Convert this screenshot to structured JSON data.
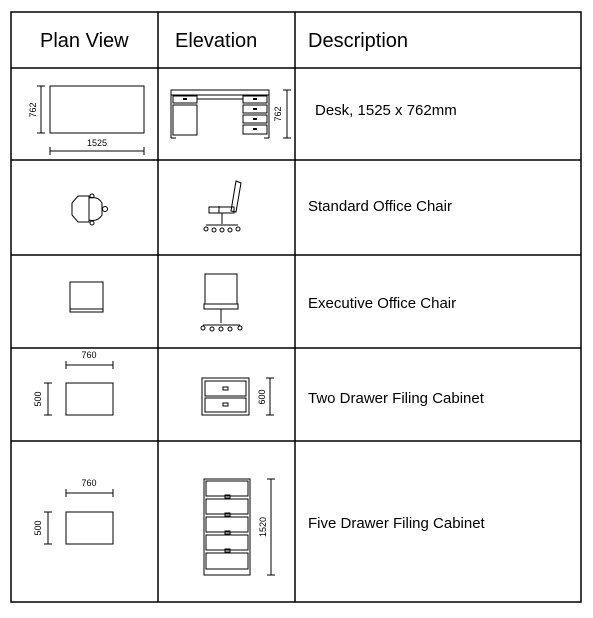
{
  "headers": {
    "plan": "Plan View",
    "elevation": "Elevation",
    "description": "Description"
  },
  "rows": [
    {
      "description": "Desk, 1525 x 762mm",
      "plan_dims": [
        "762",
        "1525"
      ],
      "elev_dims": [
        "762"
      ]
    },
    {
      "description": "Standard Office Chair"
    },
    {
      "description": "Executive Office Chair"
    },
    {
      "description": "Two Drawer Filing Cabinet",
      "plan_dims": [
        "760",
        "500"
      ],
      "elev_dims": [
        "600"
      ]
    },
    {
      "description": "Five Drawer Filing Cabinet",
      "plan_dims": [
        "760",
        "500"
      ],
      "elev_dims": [
        "1520"
      ]
    }
  ]
}
